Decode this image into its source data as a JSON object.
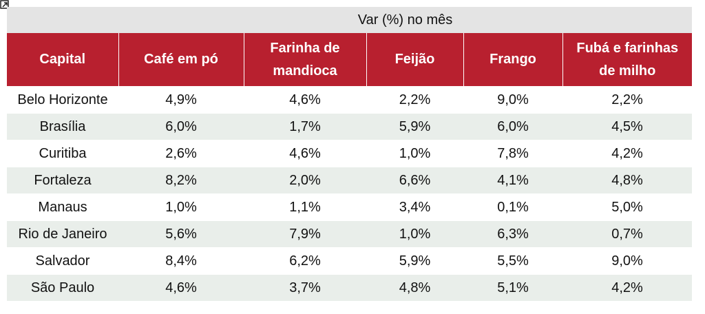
{
  "table": {
    "super_header": "Var (%) no mês",
    "columns": [
      "Capital",
      "Café em pó",
      "Farinha de mandioca",
      "Feijão",
      "Frango",
      "Fubá e farinhas de milho"
    ],
    "rows": [
      [
        "Belo Horizonte",
        "4,9%",
        "4,6%",
        "2,2%",
        "9,0%",
        "2,2%"
      ],
      [
        "Brasília",
        "6,0%",
        "1,7%",
        "5,9%",
        "6,0%",
        "4,5%"
      ],
      [
        "Curitiba",
        "2,6%",
        "4,6%",
        "1,0%",
        "7,8%",
        "4,2%"
      ],
      [
        "Fortaleza",
        "8,2%",
        "2,0%",
        "6,6%",
        "4,1%",
        "4,8%"
      ],
      [
        "Manaus",
        "1,0%",
        "1,1%",
        "3,4%",
        "0,1%",
        "5,0%"
      ],
      [
        "Rio de Janeiro",
        "5,6%",
        "7,9%",
        "1,0%",
        "6,3%",
        "0,7%"
      ],
      [
        "Salvador",
        "8,4%",
        "6,2%",
        "5,9%",
        "5,5%",
        "9,0%"
      ],
      [
        "São Paulo",
        "4,6%",
        "3,7%",
        "4,8%",
        "5,1%",
        "4,2%"
      ]
    ]
  },
  "colors": {
    "header_bg": "#b8202f",
    "super_header_bg": "#e4e4e4",
    "stripe_bg": "#e9eeea"
  },
  "icons": {
    "corner": "resize-icon"
  }
}
